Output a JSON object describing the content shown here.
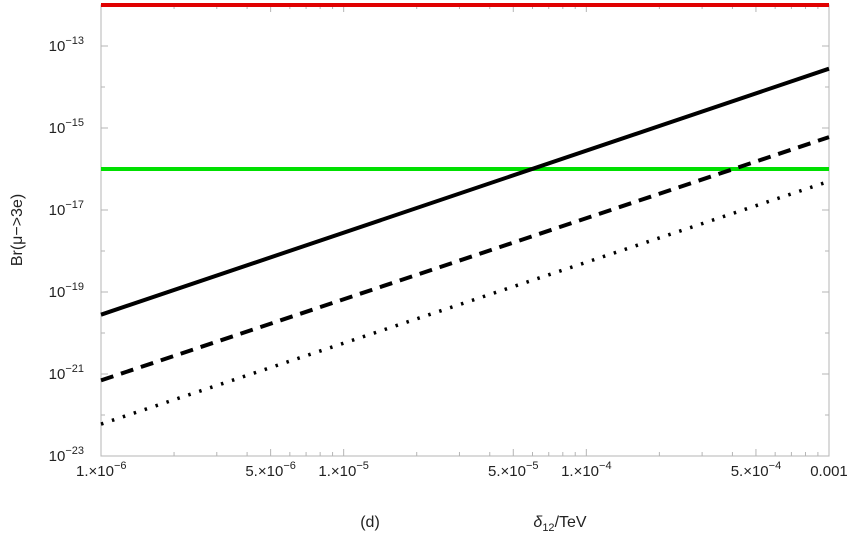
{
  "chart_data": {
    "type": "line",
    "title": "",
    "panel_label": "(d)",
    "xlabel": "δ12/TeV",
    "ylabel": "Br(μ−>3e)",
    "xscale": "log",
    "yscale": "log",
    "xlim": [
      1e-06,
      0.001
    ],
    "ylim": [
      1e-23,
      1e-12
    ],
    "grid": false,
    "legend": "none",
    "x_ticks": [
      {
        "value": 1e-06,
        "label": "1.×10",
        "exp": "−6"
      },
      {
        "value": 5e-06,
        "label": "5.×10",
        "exp": "−6"
      },
      {
        "value": 1e-05,
        "label": "1.×10",
        "exp": "−5"
      },
      {
        "value": 5e-05,
        "label": "5.×10",
        "exp": "−5"
      },
      {
        "value": 0.0001,
        "label": "1.×10",
        "exp": "−4"
      },
      {
        "value": 0.0005,
        "label": "5.×10",
        "exp": "−4"
      },
      {
        "value": 0.001,
        "label": "0.001",
        "exp": ""
      }
    ],
    "y_ticks": [
      {
        "value": 1e-13,
        "label": "10",
        "exp": "−13"
      },
      {
        "value": 1e-15,
        "label": "10",
        "exp": "−15"
      },
      {
        "value": 1e-17,
        "label": "10",
        "exp": "−17"
      },
      {
        "value": 1e-19,
        "label": "10",
        "exp": "−19"
      },
      {
        "value": 1e-21,
        "label": "10",
        "exp": "−21"
      },
      {
        "value": 1e-23,
        "label": "10",
        "exp": "−23"
      }
    ],
    "series": [
      {
        "color": "#e00000",
        "style": "solid",
        "x": [
          1e-06,
          0.001
        ],
        "y": [
          1e-12,
          1e-12
        ]
      },
      {
        "color": "#00e000",
        "style": "solid",
        "x": [
          1e-06,
          0.001
        ],
        "y": [
          1e-16,
          1e-16
        ]
      },
      {
        "color": "#000000",
        "style": "solid",
        "x": [
          1e-06,
          0.001
        ],
        "y": [
          2.8e-20,
          2.8e-14
        ]
      },
      {
        "color": "#000000",
        "style": "dashed",
        "x": [
          1e-06,
          0.001
        ],
        "y": [
          7e-22,
          6e-16
        ]
      },
      {
        "color": "#000000",
        "style": "dotted",
        "x": [
          1e-06,
          0.001
        ],
        "y": [
          6e-23,
          5e-17
        ]
      }
    ]
  }
}
